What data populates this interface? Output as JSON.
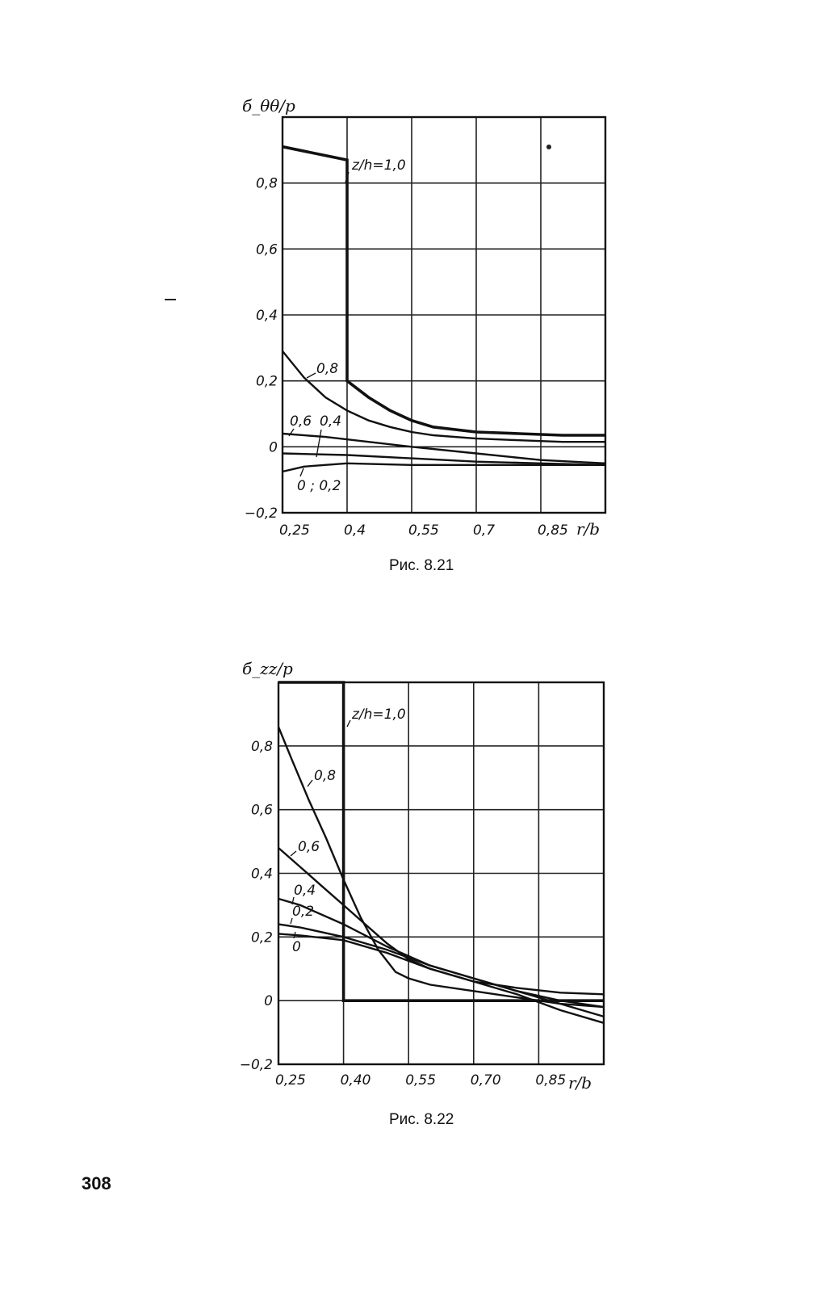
{
  "chart_data": [
    {
      "type": "line",
      "title": "",
      "ylabel": "б_θθ/p",
      "xlabel": "r/b",
      "xlim": [
        0.25,
        1.0
      ],
      "ylim": [
        -0.2,
        1.0
      ],
      "grid": true,
      "x_ticks": [
        "0,25",
        "0,4",
        "0,55",
        "0,7",
        "0,85"
      ],
      "y_ticks": [
        {
          "value": 0.8,
          "label": "0,8"
        },
        {
          "value": 0.6,
          "label": "0,6"
        },
        {
          "value": 0.4,
          "label": "0,4"
        },
        {
          "value": 0.2,
          "label": "0,2"
        },
        {
          "value": 0.0,
          "label": "0"
        },
        {
          "value": -0.2,
          "label": "−0,2"
        }
      ],
      "series": [
        {
          "name": "z/h=1,0",
          "x": [
            0.25,
            0.4,
            0.4,
            0.4,
            0.45,
            0.5,
            0.55,
            0.6,
            0.7,
            0.8,
            0.9,
            1.0
          ],
          "y": [
            0.91,
            0.87,
            0.87,
            0.2,
            0.15,
            0.11,
            0.08,
            0.06,
            0.045,
            0.04,
            0.035,
            0.035
          ]
        },
        {
          "name": "0,8",
          "x": [
            0.25,
            0.3,
            0.35,
            0.4,
            0.45,
            0.5,
            0.55,
            0.6,
            0.7,
            0.8,
            0.9,
            1.0
          ],
          "y": [
            0.29,
            0.21,
            0.15,
            0.11,
            0.08,
            0.06,
            0.045,
            0.035,
            0.025,
            0.02,
            0.015,
            0.015
          ]
        },
        {
          "name": "0,6",
          "x": [
            0.25,
            0.35,
            0.45,
            0.55,
            0.7,
            0.85,
            1.0
          ],
          "y": [
            0.04,
            0.03,
            0.015,
            0.0,
            -0.02,
            -0.04,
            -0.05
          ]
        },
        {
          "name": "0,4",
          "x": [
            0.25,
            0.4,
            0.55,
            0.7,
            0.85,
            1.0
          ],
          "y": [
            -0.02,
            -0.025,
            -0.035,
            -0.045,
            -0.05,
            -0.055
          ]
        },
        {
          "name": "0; 0,2",
          "x": [
            0.25,
            0.3,
            0.4,
            0.55,
            0.7,
            0.85,
            1.0
          ],
          "y": [
            -0.075,
            -0.06,
            -0.05,
            -0.055,
            -0.055,
            -0.055,
            -0.055
          ]
        }
      ],
      "annotations": [
        {
          "text": "z/h=1,0",
          "series": "z/h=1,0"
        },
        {
          "text": "0,8",
          "series": "0,8"
        },
        {
          "text": "0,6",
          "series": "0,6"
        },
        {
          "text": "0,4",
          "series": "0,4"
        },
        {
          "text": "0 ; 0,2",
          "series": "0; 0,2"
        }
      ],
      "caption": "Рис. 8.21"
    },
    {
      "type": "line",
      "title": "",
      "ylabel": "б_zz/p",
      "xlabel": "r/b",
      "xlim": [
        0.25,
        1.0
      ],
      "ylim": [
        -0.2,
        1.0
      ],
      "grid": true,
      "x_ticks": [
        "0,25",
        "0,40",
        "0,55",
        "0,70",
        "0,85"
      ],
      "y_ticks": [
        {
          "value": 0.8,
          "label": "0,8"
        },
        {
          "value": 0.6,
          "label": "0,6"
        },
        {
          "value": 0.4,
          "label": "0,4"
        },
        {
          "value": 0.2,
          "label": "0,2"
        },
        {
          "value": 0.0,
          "label": "0"
        },
        {
          "value": -0.2,
          "label": "−0,2"
        }
      ],
      "series": [
        {
          "name": "z/h=1,0",
          "x": [
            0.25,
            0.4,
            0.4,
            0.4,
            1.0
          ],
          "y": [
            1.0,
            1.0,
            1.0,
            0.0,
            0.0
          ]
        },
        {
          "name": "0,8",
          "x": [
            0.25,
            0.28,
            0.32,
            0.36,
            0.4,
            0.44,
            0.48,
            0.52,
            0.55,
            0.6,
            0.7,
            0.8,
            0.9,
            1.0
          ],
          "y": [
            0.86,
            0.76,
            0.63,
            0.51,
            0.38,
            0.26,
            0.16,
            0.09,
            0.07,
            0.05,
            0.03,
            0.01,
            -0.01,
            -0.02
          ]
        },
        {
          "name": "0,6",
          "x": [
            0.25,
            0.3,
            0.35,
            0.4,
            0.45,
            0.5,
            0.55,
            0.6,
            0.7,
            0.8,
            0.9,
            1.0
          ],
          "y": [
            0.48,
            0.42,
            0.36,
            0.3,
            0.24,
            0.18,
            0.13,
            0.1,
            0.06,
            0.04,
            0.025,
            0.02
          ]
        },
        {
          "name": "0,4",
          "x": [
            0.25,
            0.3,
            0.4,
            0.5,
            0.55,
            0.6,
            0.7,
            0.8,
            0.9,
            1.0
          ],
          "y": [
            0.32,
            0.3,
            0.24,
            0.17,
            0.14,
            0.11,
            0.07,
            0.03,
            0.0,
            -0.02
          ]
        },
        {
          "name": "0,2",
          "x": [
            0.25,
            0.3,
            0.4,
            0.5,
            0.6,
            0.7,
            0.8,
            0.9,
            1.0
          ],
          "y": [
            0.24,
            0.23,
            0.2,
            0.16,
            0.11,
            0.07,
            0.03,
            -0.01,
            -0.05
          ]
        },
        {
          "name": "0",
          "x": [
            0.25,
            0.3,
            0.4,
            0.5,
            0.6,
            0.7,
            0.8,
            0.9,
            1.0
          ],
          "y": [
            0.21,
            0.205,
            0.19,
            0.15,
            0.1,
            0.06,
            0.02,
            -0.03,
            -0.07
          ]
        }
      ],
      "annotations": [
        {
          "text": "z/h=1,0",
          "series": "z/h=1,0"
        },
        {
          "text": "0,8",
          "series": "0,8"
        },
        {
          "text": "0,6",
          "series": "0,6"
        },
        {
          "text": "0,4",
          "series": "0,4"
        },
        {
          "text": "0,2",
          "series": "0,2"
        },
        {
          "text": "0",
          "series": "0"
        }
      ],
      "caption": "Рис. 8.22"
    }
  ],
  "page_number": "308"
}
